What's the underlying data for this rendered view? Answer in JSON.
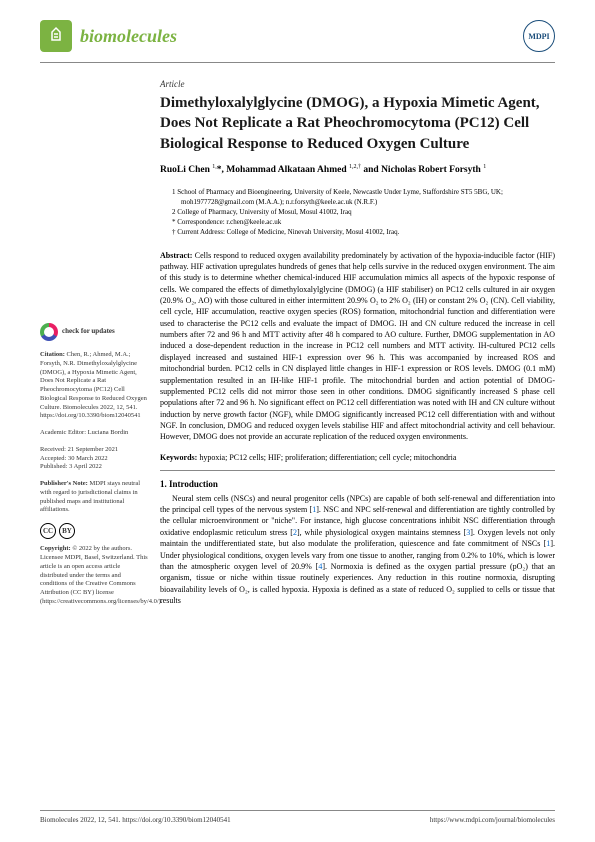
{
  "journal": {
    "name": "biomolecules",
    "publisher": "MDPI"
  },
  "article": {
    "type": "Article",
    "title": "Dimethyloxalylglycine (DMOG), a Hypoxia Mimetic Agent, Does Not Replicate a Rat Pheochromocytoma (PC12) Cell Biological Response to Reduced Oxygen Culture",
    "authors_html": "RuoLi Chen <sup>1,</sup>*, Mohammad Alkataan Ahmed <sup>1,2,†</sup> and Nicholas Robert Forsyth <sup>1</sup>"
  },
  "affiliations": {
    "a1": "1   School of Pharmacy and Bioengineering, University of Keele, Newcastle Under Lyme, Staffordshire ST5 5BG, UK; moh1977728@gmail.com (M.A.A.); n.r.forsyth@keele.ac.uk (N.R.F.)",
    "a2": "2   College of Pharmacy, University of Mosul, Mosul 41002, Iraq",
    "corr": "*   Correspondence: r.chen@keele.ac.uk",
    "curr": "†   Current Address: College of Medicine, Ninevah University, Mosul 41002, Iraq."
  },
  "abstract": {
    "label": "Abstract:",
    "text": " Cells respond to reduced oxygen availability predominately by activation of the hypoxia-inducible factor (HIF) pathway. HIF activation upregulates hundreds of genes that help cells survive in the reduced oxygen environment. The aim of this study is to determine whether chemical-induced HIF accumulation mimics all aspects of the hypoxic response of cells. We compared the effects of dimethyloxalylglycine (DMOG) (a HIF stabiliser) on PC12 cells cultured in air oxygen (20.9% O₂, AO) with those cultured in either intermittent 20.9% O₂ to 2% O₂ (IH) or constant 2% O₂ (CN). Cell viability, cell cycle, HIF accumulation, reactive oxygen species (ROS) formation, mitochondrial function and differentiation were used to characterise the PC12 cells and evaluate the impact of DMOG. IH and CN culture reduced the increase in cell numbers after 72 and 96 h and MTT activity after 48 h compared to AO culture. Further, DMOG supplementation in AO induced a dose-dependent reduction in the increase in PC12 cell numbers and MTT activity. IH-cultured PC12 cells displayed increased and sustained HIF-1 expression over 96 h. This was accompanied by increased ROS and mitochondrial burden. PC12 cells in CN displayed little changes in HIF-1 expression or ROS levels. DMOG (0.1 mM) supplementation resulted in an IH-like HIF-1 profile. The mitochondrial burden and action potential of DMOG-supplemented PC12 cells did not mirror those seen in other conditions. DMOG significantly increased S phase cell populations after 72 and 96 h. No significant effect on PC12 cell differentiation was noted with IH and CN culture without induction by nerve growth factor (NGF), while DMOG significantly increased PC12 cell differentiation with and without NGF. In conclusion, DMOG and reduced oxygen levels stabilise HIF and affect mitochondrial activity and cell behaviour. However, DMOG does not provide an accurate replication of the reduced oxygen environments."
  },
  "keywords": {
    "label": "Keywords:",
    "text": " hypoxia; PC12 cells; HIF; proliferation; differentiation; cell cycle; mitochondria"
  },
  "section": {
    "number_title": "1. Introduction",
    "p1_html": "Neural stem cells (NSCs) and neural progenitor cells (NPCs) are capable of both self-renewal and differentiation into the principal cell types of the nervous system [<span class='ref-link'>1</span>]. NSC and NPC self-renewal and differentiation are tightly controlled by the cellular microenvironment or \"niche\". For instance, high glucose concentrations inhibit NSC differentiation through oxidative endoplasmic reticulum stress [<span class='ref-link'>2</span>], while physiological oxygen maintains stemness [<span class='ref-link'>3</span>]. Oxygen levels not only maintain the undifferentiated state, but also modulate the proliferation, quiescence and fate commitment of NSCs [<span class='ref-link'>1</span>]. Under physiological conditions, oxygen levels vary from one tissue to another, ranging from 0.2% to 10%, which is lower than the atmospheric oxygen level of 20.9% [<span class='ref-link'>4</span>]. Normoxia is defined as the oxygen partial pressure (pO₂) that an organism, tissue or niche within tissue routinely experiences. Any reduction in this routine normoxia, disrupting bioavailability levels of O₂, is called hypoxia. Hypoxia is defined as a state of reduced O₂ supplied to cells or tissue that results"
  },
  "sidebar": {
    "check": "check for updates",
    "citation_label": "Citation:",
    "citation_text": " Chen, R.; Ahmed, M.A.; Forsyth, N.R. Dimethyloxalylglycine (DMOG), a Hypoxia Mimetic Agent, Does Not Replicate a Rat Pheochromocytoma (PC12) Cell Biological Response to Reduced Oxygen Culture. Biomolecules 2022, 12, 541. https://doi.org/10.3390/biom12040541",
    "editor_label": "Academic Editor:",
    "editor": " Luciana Bordin",
    "received": "Received: 21 September 2021",
    "accepted": "Accepted: 30 March 2022",
    "published": "Published: 3 April 2022",
    "note_label": "Publisher's Note:",
    "note": " MDPI stays neutral with regard to jurisdictional claims in published maps and institutional affiliations.",
    "copyright_label": "Copyright:",
    "copyright": " © 2022 by the authors. Licensee MDPI, Basel, Switzerland. This article is an open access article distributed under the terms and conditions of the Creative Commons Attribution (CC BY) license (https://creativecommons.org/licenses/by/4.0/)."
  },
  "footer": {
    "left": "Biomolecules 2022, 12, 541. https://doi.org/10.3390/biom12040541",
    "right": "https://www.mdpi.com/journal/biomolecules"
  },
  "colors": {
    "brand_green": "#7cb342",
    "mdpi_blue": "#1a4d7a",
    "link_blue": "#0066cc",
    "text": "#1a1a1a"
  }
}
